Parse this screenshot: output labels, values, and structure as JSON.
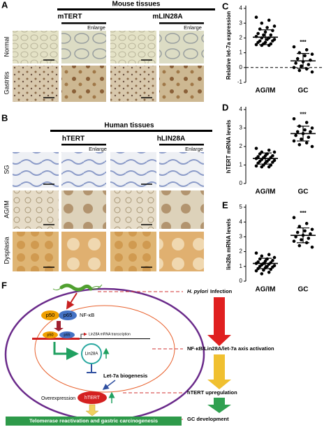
{
  "panel_a": {
    "label": "A",
    "title": "Mouse tissues",
    "columns": [
      "mTERT",
      "mLIN28A"
    ],
    "enlarge": "Enlarge",
    "rows": [
      "Normal",
      "Gastritis"
    ]
  },
  "panel_b": {
    "label": "B",
    "title": "Human tissues",
    "columns": [
      "hTERT",
      "hLIN28A"
    ],
    "enlarge": "Enlarge",
    "rows": [
      "SG",
      "AG/IM",
      "Dysplasia"
    ]
  },
  "chart_data": [
    {
      "type": "scatter",
      "panel_label": "C",
      "y_label": "Relative let-7a expression",
      "categories": [
        "AG/IM",
        "GC"
      ],
      "ylim": [
        -1,
        4
      ],
      "yticks": [
        -1,
        0,
        1,
        2,
        3,
        4
      ],
      "reference_line": 0,
      "significance": "***",
      "groups": [
        {
          "values": [
            3.4,
            3.2,
            3.0,
            2.8,
            2.7,
            2.6,
            2.5,
            2.4,
            2.3,
            2.2,
            2.2,
            2.1,
            2.0,
            2.0,
            1.9,
            1.9,
            1.8,
            1.8,
            1.7,
            1.7,
            1.6,
            1.6,
            1.55,
            1.5,
            1.5
          ],
          "mean": 2.05,
          "sd": 0.5
        },
        {
          "values": [
            1.4,
            1.2,
            1.0,
            0.9,
            0.8,
            0.6,
            0.5,
            0.4,
            0.3,
            0.2,
            0.1,
            0.0,
            -0.1,
            -0.2,
            -0.3
          ],
          "mean": 0.45,
          "sd": 0.5
        }
      ]
    },
    {
      "type": "scatter",
      "panel_label": "D",
      "y_label": "hTERT mRNA levels",
      "categories": [
        "AG/IM",
        "GC"
      ],
      "ylim": [
        0,
        4
      ],
      "yticks": [
        0,
        1,
        2,
        3,
        4
      ],
      "significance": "***",
      "groups": [
        {
          "values": [
            1.9,
            1.8,
            1.7,
            1.7,
            1.6,
            1.6,
            1.5,
            1.5,
            1.45,
            1.4,
            1.4,
            1.35,
            1.3,
            1.3,
            1.25,
            1.2,
            1.2,
            1.15,
            1.1,
            1.1,
            1.0,
            1.0,
            0.95,
            0.9,
            0.9
          ],
          "mean": 1.35,
          "sd": 0.3
        },
        {
          "values": [
            3.5,
            3.3,
            3.1,
            3.0,
            2.9,
            2.8,
            2.8,
            2.7,
            2.6,
            2.5,
            2.4,
            2.3,
            2.2,
            2.1,
            2.0
          ],
          "mean": 2.7,
          "sd": 0.4
        }
      ]
    },
    {
      "type": "scatter",
      "panel_label": "E",
      "y_label": "lin28a mRNA levels",
      "categories": [
        "AG/IM",
        "GC"
      ],
      "ylim": [
        0,
        5
      ],
      "yticks": [
        0,
        1,
        2,
        3,
        4,
        5
      ],
      "significance": "***",
      "groups": [
        {
          "values": [
            1.9,
            1.8,
            1.7,
            1.6,
            1.5,
            1.5,
            1.4,
            1.35,
            1.3,
            1.25,
            1.2,
            1.2,
            1.15,
            1.1,
            1.05,
            1.0,
            1.0,
            0.95,
            0.9,
            0.85,
            0.8,
            0.75,
            0.7,
            0.6,
            0.5
          ],
          "mean": 1.2,
          "sd": 0.35
        },
        {
          "values": [
            4.3,
            3.9,
            3.7,
            3.5,
            3.4,
            3.3,
            3.2,
            3.1,
            3.0,
            2.9,
            2.8,
            2.7,
            2.6,
            2.4,
            2.3
          ],
          "mean": 3.1,
          "sd": 0.5
        }
      ]
    }
  ],
  "panel_f": {
    "label": "F",
    "nodes": {
      "p50": "p50",
      "p65": "p65",
      "nfkb": "NF-κB",
      "transcription": "Lin28A mRNA transcription",
      "lin28a": "Lin28A",
      "let7a": "Let-7a biogenesis",
      "overexpression": "Overexpression",
      "htert": "hTERT",
      "outcome": "Telomerase reactivation and gastric carcinogenesis"
    },
    "steps": [
      {
        "italic": "H. pylori",
        "text": "Infection"
      },
      {
        "text": "NF-κB/Lin28A/let-7a axis activation"
      },
      {
        "text": "hTERT upregulation"
      },
      {
        "text": "GC development"
      }
    ]
  }
}
